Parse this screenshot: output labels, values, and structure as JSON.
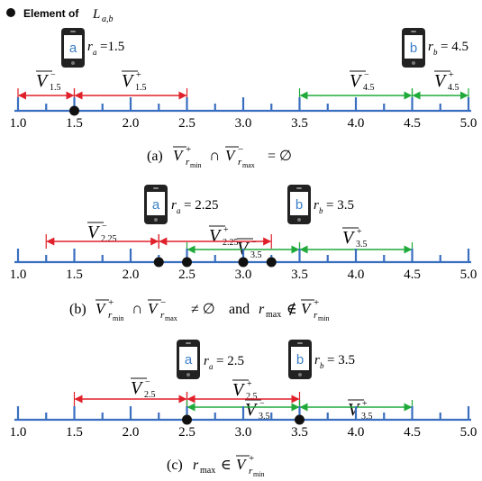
{
  "legend": {
    "label": "Element of",
    "symbol": "L",
    "subscript": "a,b"
  },
  "colors": {
    "axis": "#3a6fc0",
    "red": "#e0202a",
    "green": "#1faa3a",
    "phone": "#222222",
    "phone_screen": "#ffffff",
    "phone_letter": "#3a7fc8",
    "dot": "#111111"
  },
  "axis_ticks": [
    "1.0",
    "1.5",
    "2.0",
    "2.5",
    "3.0",
    "3.5",
    "4.0",
    "4.5",
    "5.0"
  ],
  "panels": [
    {
      "caption": "(a)  V̄⁺r_min ∩ V̄⁻r_max = ∅",
      "caption_parts": {
        "label": "(a)",
        "rest": "= ∅"
      },
      "phone_a": {
        "letter": "a",
        "r_label": "r",
        "r_sub": "a",
        "r_value": "=1.5"
      },
      "phone_b": {
        "letter": "b",
        "r_label": "r",
        "r_sub": "b",
        "r_value": "= 4.5"
      },
      "interval_labels": [
        {
          "sym": "V",
          "sup": "−",
          "sub": "1.5"
        },
        {
          "sym": "V",
          "sup": "+",
          "sub": "1.5"
        },
        {
          "sym": "V",
          "sup": "−",
          "sub": "4.5"
        },
        {
          "sym": "V",
          "sup": "+",
          "sub": "4.5"
        }
      ],
      "dots": [
        1.5
      ]
    },
    {
      "caption": "(b)  V̄⁺r_min ∩ V̄⁻r_max ≠ ∅ and r_max ∉ V̄⁺r_min",
      "caption_parts": {
        "label": "(b)",
        "and": "and"
      },
      "phone_a": {
        "letter": "a",
        "r_label": "r",
        "r_sub": "a",
        "r_value": "= 2.25"
      },
      "phone_b": {
        "letter": "b",
        "r_label": "r",
        "r_sub": "b",
        "r_value": "= 3.5"
      },
      "interval_labels": [
        {
          "sym": "V",
          "sup": "−",
          "sub": "2.25"
        },
        {
          "sym": "V",
          "sup": "+",
          "sub": "2.25"
        },
        {
          "sym": "V",
          "sup": "−",
          "sub": "3.5"
        },
        {
          "sym": "V",
          "sup": "+",
          "sub": "3.5"
        }
      ],
      "dots": [
        2.25,
        2.5,
        3.0,
        3.25
      ]
    },
    {
      "caption": "(c)  r_max ∈ V̄⁺r_min",
      "caption_parts": {
        "label": "(c)"
      },
      "phone_a": {
        "letter": "a",
        "r_label": "r",
        "r_sub": "a",
        "r_value": "= 2.5"
      },
      "phone_b": {
        "letter": "b",
        "r_label": "r",
        "r_sub": "b",
        "r_value": "= 3.5"
      },
      "interval_labels": [
        {
          "sym": "V",
          "sup": "−",
          "sub": "2.5"
        },
        {
          "sym": "V",
          "sup": "+",
          "sub": "2.5"
        },
        {
          "sym": "V",
          "sup": "−",
          "sub": "3.5"
        },
        {
          "sym": "V",
          "sup": "+",
          "sub": "3.5"
        }
      ],
      "dots": [
        2.5,
        3.5
      ]
    }
  ]
}
